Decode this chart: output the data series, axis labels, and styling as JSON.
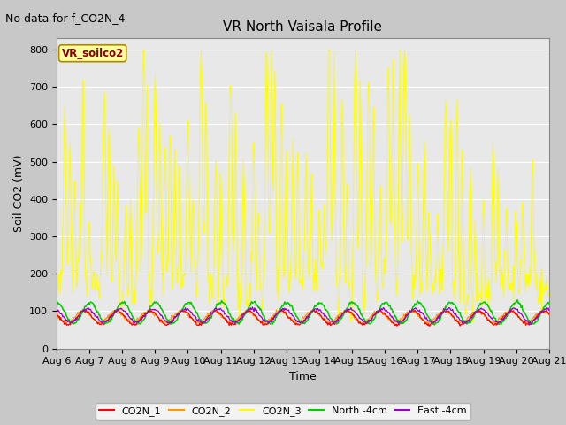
{
  "title": "VR North Vaisala Profile",
  "subtitle": "No data for f_CO2N_4",
  "ylabel": "Soil CO2 (mV)",
  "xlabel": "Time",
  "ylim": [
    0,
    830
  ],
  "yticks": [
    0,
    100,
    200,
    300,
    400,
    500,
    600,
    700,
    800
  ],
  "xlim": [
    0,
    15
  ],
  "xtick_labels": [
    "Aug 6",
    "Aug 7",
    "Aug 8",
    "Aug 9",
    "Aug 10",
    "Aug 11",
    "Aug 12",
    "Aug 13",
    "Aug 14",
    "Aug 15",
    "Aug 16",
    "Aug 17",
    "Aug 18",
    "Aug 19",
    "Aug 20",
    "Aug 21"
  ],
  "co2n1_color": "#ff0000",
  "co2n2_color": "#ff9900",
  "co2n3_color": "#ffff00",
  "north_color": "#00cc00",
  "east_color": "#9900cc",
  "fig_bg": "#c8c8c8",
  "plot_bg": "#e8e8e8",
  "grid_color": "#ffffff",
  "vr_box_bg": "#ffffa0",
  "vr_box_edge": "#aa8800",
  "vr_text_color": "#880000",
  "title_fontsize": 11,
  "label_fontsize": 9,
  "tick_fontsize": 8,
  "legend_fontsize": 8
}
